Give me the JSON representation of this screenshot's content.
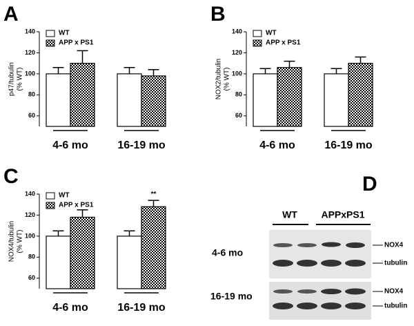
{
  "chart_data": [
    {
      "type": "bar",
      "panel": "A",
      "ylabel": [
        "p47/tubulin",
        "(% WT)"
      ],
      "categories": [
        "4-6 mo",
        "16-19 mo"
      ],
      "series": [
        {
          "name": "WT",
          "color": "#ffffff",
          "values": [
            100,
            100
          ],
          "errors": [
            6,
            6
          ]
        },
        {
          "name": "APP x PS1",
          "color": "#000000",
          "fill": "checkerboard",
          "values": [
            110,
            98
          ],
          "errors": [
            12,
            6
          ]
        }
      ],
      "ylim": [
        50,
        140
      ],
      "yticks": [
        60,
        80,
        100,
        120,
        140
      ]
    },
    {
      "type": "bar",
      "panel": "B",
      "ylabel": [
        "NOX2/tubulin",
        "(% WT)"
      ],
      "categories": [
        "4-6 mo",
        "16-19 mo"
      ],
      "series": [
        {
          "name": "WT",
          "color": "#ffffff",
          "values": [
            100,
            100
          ],
          "errors": [
            5,
            5
          ]
        },
        {
          "name": "APP x PS1",
          "color": "#000000",
          "fill": "checkerboard",
          "values": [
            106,
            110
          ],
          "errors": [
            6,
            6
          ]
        }
      ],
      "ylim": [
        50,
        140
      ],
      "yticks": [
        60,
        80,
        100,
        120,
        140
      ]
    },
    {
      "type": "bar",
      "panel": "C",
      "ylabel": [
        "NOX4/tubulin",
        "(% WT)"
      ],
      "categories": [
        "4-6 mo",
        "16-19 mo"
      ],
      "series": [
        {
          "name": "WT",
          "color": "#ffffff",
          "values": [
            100,
            100
          ],
          "errors": [
            5,
            5
          ]
        },
        {
          "name": "APP x PS1",
          "color": "#000000",
          "fill": "checkerboard",
          "values": [
            118,
            128
          ],
          "errors": [
            7,
            6
          ]
        }
      ],
      "annotations": [
        {
          "text": "**",
          "category": 1,
          "series": 1
        }
      ],
      "ylim": [
        50,
        140
      ],
      "yticks": [
        60,
        80,
        100,
        120,
        140
      ]
    }
  ],
  "blot": {
    "panel": "D",
    "columns": [
      "WT",
      "APPxPS1"
    ],
    "rows": [
      "4-6 mo",
      "16-19 mo"
    ],
    "bands": [
      [
        "NOX4",
        "tubulin"
      ],
      [
        "NOX4",
        "tubulin"
      ]
    ]
  }
}
